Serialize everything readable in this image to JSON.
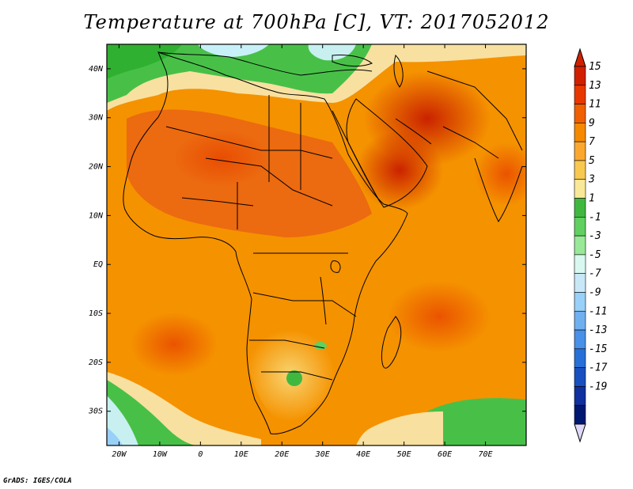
{
  "title": "Temperature at 700hPa [C], VT: 2017052012",
  "credit": "GrADS: IGES/COLA",
  "map": {
    "lon_range": [
      -23,
      80
    ],
    "lat_range": [
      -37,
      45
    ],
    "y_ticks": [
      {
        "lat": 40,
        "label": "40N"
      },
      {
        "lat": 30,
        "label": "30N"
      },
      {
        "lat": 20,
        "label": "20N"
      },
      {
        "lat": 10,
        "label": "10N"
      },
      {
        "lat": 0,
        "label": "EQ"
      },
      {
        "lat": -10,
        "label": "10S"
      },
      {
        "lat": -20,
        "label": "20S"
      },
      {
        "lat": -30,
        "label": "30S"
      }
    ],
    "x_ticks": [
      {
        "lon": -20,
        "label": "20W"
      },
      {
        "lon": -10,
        "label": "10W"
      },
      {
        "lon": 0,
        "label": "0"
      },
      {
        "lon": 10,
        "label": "10E"
      },
      {
        "lon": 20,
        "label": "20E"
      },
      {
        "lon": 30,
        "label": "30E"
      },
      {
        "lon": 40,
        "label": "40E"
      },
      {
        "lon": 50,
        "label": "50E"
      },
      {
        "lon": 60,
        "label": "60E"
      },
      {
        "lon": 70,
        "label": "70E"
      }
    ]
  },
  "colorbar": {
    "levels": [
      15,
      13,
      11,
      9,
      7,
      5,
      3,
      1,
      -1,
      -3,
      -5,
      -7,
      -9,
      -11,
      -13,
      -15,
      -17,
      -19
    ],
    "colors": [
      "#d02000",
      "#e83800",
      "#f06000",
      "#f58a00",
      "#faa830",
      "#f8c850",
      "#f8e898",
      "#40b840",
      "#60d060",
      "#98e898",
      "#d8f8f0",
      "#c8e8f8",
      "#98d0f8",
      "#70b0f0",
      "#4890e8",
      "#2870d8",
      "#1850c0",
      "#1030a0",
      "#001870"
    ],
    "top_color": "#d02000",
    "bottom_color": "#e0d8f8"
  }
}
